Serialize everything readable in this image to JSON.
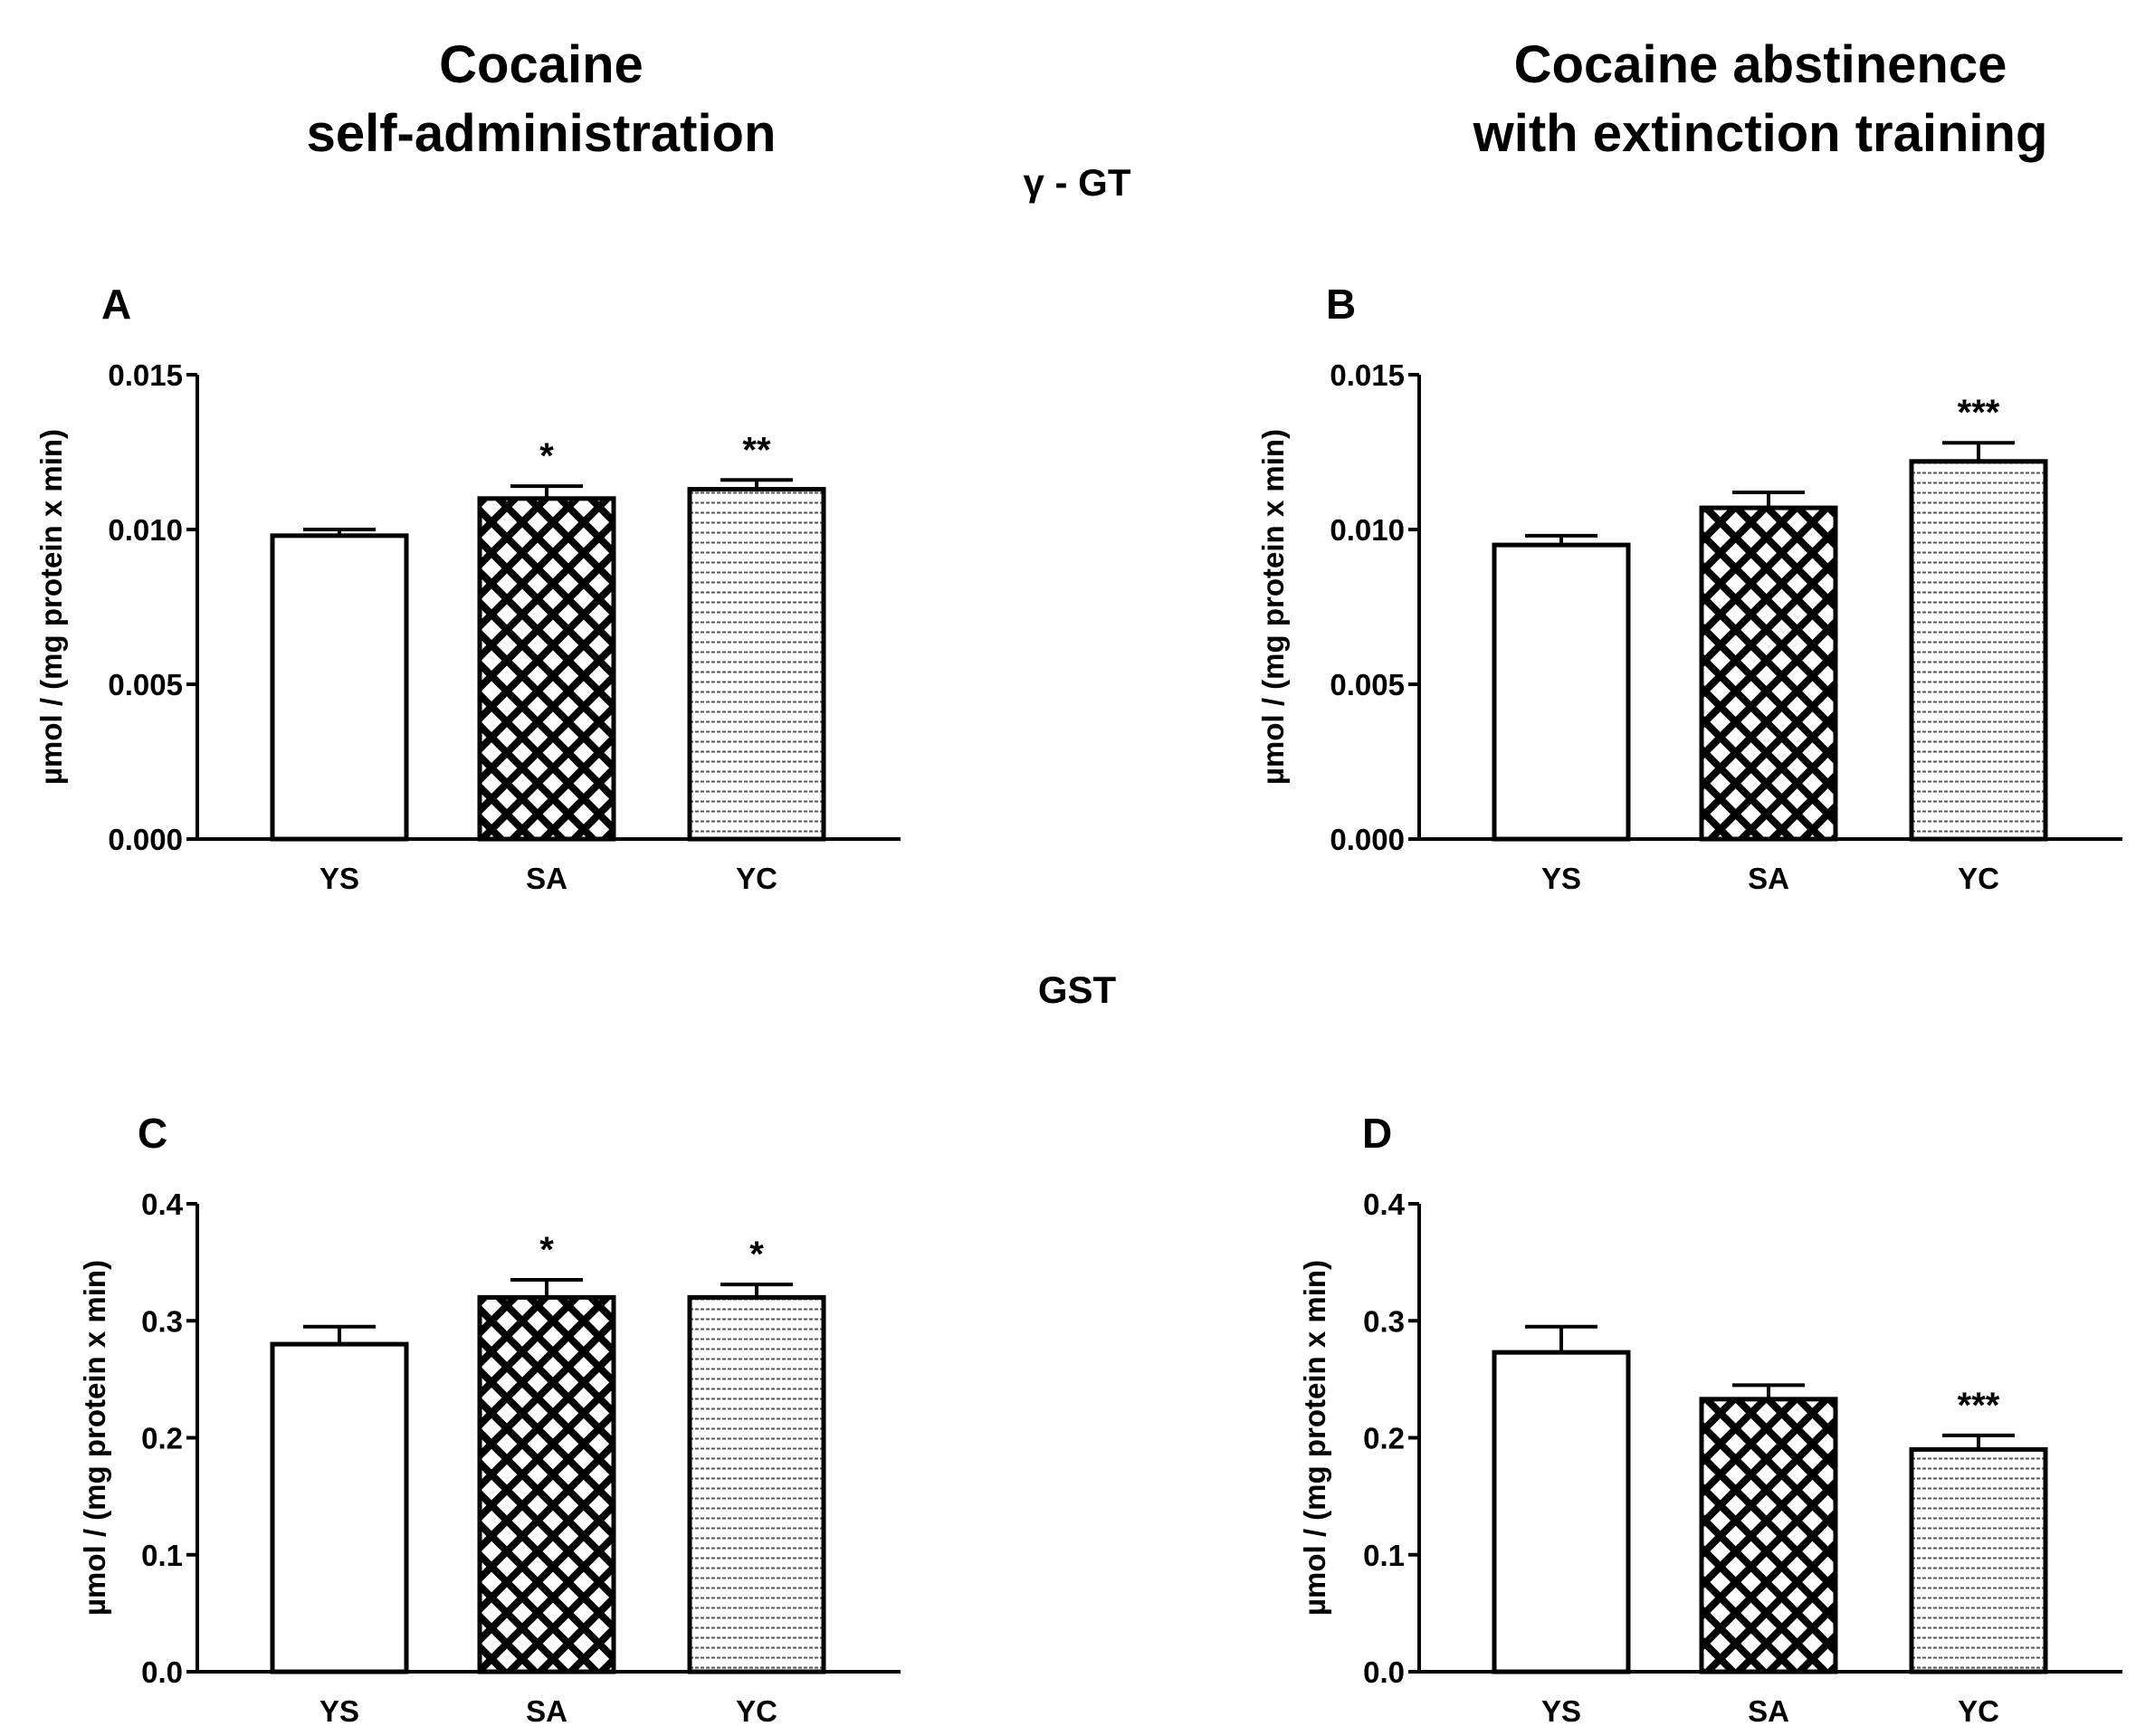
{
  "column_titles": {
    "left": [
      "Cocaine",
      "self-administration"
    ],
    "right": [
      "Cocaine abstinence",
      "with extinction training"
    ]
  },
  "section_titles": {
    "top": "γ - GT",
    "bottom": "GST"
  },
  "colors": {
    "ink": "#000000",
    "background": "#ffffff"
  },
  "chart_data": [
    {
      "type": "bar",
      "panel": "A",
      "categories": [
        "YS",
        "SA",
        "YC"
      ],
      "values": [
        0.0098,
        0.011,
        0.0113
      ],
      "errors": [
        0.0002,
        0.0004,
        0.0003
      ],
      "significance": [
        "",
        "*",
        "**"
      ],
      "patterns": [
        "white",
        "crosshatch",
        "horizontal-lines"
      ],
      "ylabel": "µmol / (mg protein x min)",
      "ylim": [
        0,
        0.015
      ],
      "yticks": [
        "0.000",
        "0.005",
        "0.010",
        "0.015"
      ]
    },
    {
      "type": "bar",
      "panel": "B",
      "categories": [
        "YS",
        "SA",
        "YC"
      ],
      "values": [
        0.0095,
        0.0107,
        0.0122
      ],
      "errors": [
        0.0003,
        0.0005,
        0.0006
      ],
      "significance": [
        "",
        "",
        "***"
      ],
      "patterns": [
        "white",
        "crosshatch",
        "horizontal-lines"
      ],
      "ylabel": "µmol / (mg protein x min)",
      "ylim": [
        0,
        0.015
      ],
      "yticks": [
        "0.000",
        "0.005",
        "0.010",
        "0.015"
      ]
    },
    {
      "type": "bar",
      "panel": "C",
      "categories": [
        "YS",
        "SA",
        "YC"
      ],
      "values": [
        0.28,
        0.32,
        0.32
      ],
      "errors": [
        0.015,
        0.015,
        0.011
      ],
      "significance": [
        "",
        "*",
        "*"
      ],
      "patterns": [
        "white",
        "crosshatch",
        "horizontal-lines"
      ],
      "ylabel": "µmol / (mg protein x min)",
      "ylim": [
        0,
        0.4
      ],
      "yticks": [
        "0.0",
        "0.1",
        "0.2",
        "0.3",
        "0.4"
      ]
    },
    {
      "type": "bar",
      "panel": "D",
      "categories": [
        "YS",
        "SA",
        "YC"
      ],
      "values": [
        0.273,
        0.233,
        0.19
      ],
      "errors": [
        0.022,
        0.012,
        0.012
      ],
      "significance": [
        "",
        "",
        "***"
      ],
      "patterns": [
        "white",
        "crosshatch",
        "horizontal-lines"
      ],
      "ylabel": "µmol / (mg protein x min)",
      "ylim": [
        0,
        0.4
      ],
      "yticks": [
        "0.0",
        "0.1",
        "0.2",
        "0.3",
        "0.4"
      ]
    }
  ]
}
